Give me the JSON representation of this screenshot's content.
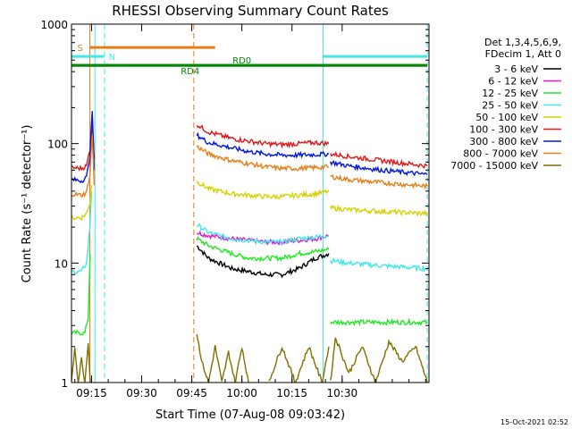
{
  "chart_data": {
    "type": "line",
    "title": "RHESSI Observing Summary Count Rates",
    "xlabel": "Start Time (07-Aug-08 09:03:42)",
    "ylabel": "Count Rate (s⁻¹ detector⁻¹)",
    "ylim": [
      1,
      1000
    ],
    "yscale": "log",
    "xlim_min": [
      7,
      114
    ],
    "x_ticks": [
      {
        "t": 13,
        "label": "09:15"
      },
      {
        "t": 28,
        "label": "09:30"
      },
      {
        "t": 43,
        "label": "09:45"
      },
      {
        "t": 58,
        "label": "10:00"
      },
      {
        "t": 73,
        "label": "10:15"
      },
      {
        "t": 88,
        "label": "10:30"
      }
    ],
    "y_ticks": [
      {
        "v": 1,
        "label": "1"
      },
      {
        "v": 10,
        "label": "10"
      },
      {
        "v": 100,
        "label": "100"
      },
      {
        "v": 1000,
        "label": "1000"
      }
    ],
    "legend_header": [
      "Det 1,3,4,5,6,9,",
      "FDecim 1, Att 0"
    ],
    "footer_date": "15-Oct-2021 02:52",
    "attenuator_lines": [
      {
        "t": 12.5,
        "style": "solid",
        "color": "#e87d18"
      },
      {
        "t": 43.6,
        "style": "dashed",
        "color": "#e87d18"
      },
      {
        "t": 14.0,
        "style": "solid",
        "color": "#42e8e8"
      },
      {
        "t": 16.9,
        "style": "dashed",
        "color": "#42e8e8"
      },
      {
        "t": 82.3,
        "style": "solid",
        "color": "#42e8e8"
      },
      {
        "t": 113.5,
        "style": "dashed",
        "color": "#42e8e8"
      }
    ],
    "flag_bars": [
      {
        "label": "S",
        "t0": 12.5,
        "t1": 50.0,
        "level": 0.935,
        "color": "#e87d18"
      },
      {
        "label": "N",
        "t0": 7.0,
        "t1": 16.8,
        "level": 0.91,
        "color": "#42e8e8"
      },
      {
        "label": "N",
        "t0": 82.3,
        "t1": 113.5,
        "level": 0.91,
        "color": "#42e8e8"
      },
      {
        "label": "RD0",
        "t0": 7.0,
        "t1": 113.5,
        "level": 0.885,
        "color": "#008800"
      },
      {
        "label": "RD4",
        "t0": 7.0,
        "t1": 113.5,
        "level": 0.885,
        "color": "#008800"
      }
    ],
    "series": [
      {
        "name": "3 - 6 keV",
        "color": "#000000",
        "segments": [
          {
            "t": [
              44.5,
              48,
              55,
              60,
              65,
              70,
              75,
              80,
              84
            ],
            "v": [
              14,
              11,
              9,
              8.5,
              8,
              8,
              9,
              11,
              12
            ]
          }
        ]
      },
      {
        "name": "6 - 12 keV",
        "color": "#e01cd0",
        "segments": [
          {
            "t": [
              44.5,
              48,
              55,
              60,
              65,
              70,
              75,
              80,
              84
            ],
            "v": [
              18,
              17,
              16,
              15.5,
              15,
              15,
              15.5,
              16,
              17
            ]
          }
        ]
      },
      {
        "name": "12 - 25 keV",
        "color": "#20e820",
        "segments": [
          {
            "t": [
              7,
              11,
              12,
              12.6
            ],
            "v": [
              2.6,
              2.6,
              3.5,
              12
            ]
          },
          {
            "t": [
              44.5,
              48,
              55,
              60,
              65,
              70,
              75,
              80,
              84
            ],
            "v": [
              16,
              14,
              12,
              11,
              11,
              11,
              12,
              12.5,
              13
            ]
          },
          {
            "t": [
              84.5,
              90,
              100,
              113.5
            ],
            "v": [
              3.2,
              3.2,
              3.2,
              3.2
            ]
          }
        ]
      },
      {
        "name": "25 - 50 keV",
        "color": "#42e8e8",
        "segments": [
          {
            "t": [
              7,
              10,
              11.5,
              12.5,
              13
            ],
            "v": [
              8.5,
              8.5,
              10,
              20,
              40
            ]
          },
          {
            "t": [
              44.5,
              48,
              55,
              60,
              65,
              70,
              75,
              80,
              84
            ],
            "v": [
              21,
              18,
              16,
              15.5,
              15,
              15,
              16,
              16.5,
              17
            ]
          },
          {
            "t": [
              84.5,
              90,
              100,
              113.5
            ],
            "v": [
              10.5,
              10,
              9.5,
              9
            ]
          }
        ]
      },
      {
        "name": "50 - 100 keV",
        "color": "#d8d000",
        "segments": [
          {
            "t": [
              7,
              10,
              11.5,
              12.5,
              13
            ],
            "v": [
              24,
              24,
              26,
              32,
              45
            ]
          },
          {
            "t": [
              44.5,
              48,
              55,
              60,
              65,
              70,
              75,
              80,
              84
            ],
            "v": [
              48,
              42,
              38,
              37,
              36,
              36,
              37,
              38,
              40
            ]
          },
          {
            "t": [
              84.5,
              90,
              100,
              113.5
            ],
            "v": [
              29,
              28,
              27,
              26
            ]
          }
        ]
      },
      {
        "name": "100 - 300 keV",
        "color": "#e01818",
        "segments": [
          {
            "t": [
              7,
              10,
              11.5,
              12.5,
              13.2,
              13.8
            ],
            "v": [
              63,
              62,
              65,
              90,
              150,
              75
            ]
          },
          {
            "t": [
              44.5,
              48,
              55,
              60,
              65,
              70,
              75,
              80,
              84
            ],
            "v": [
              145,
              125,
              110,
              105,
              100,
              98,
              100,
              102,
              100
            ]
          },
          {
            "t": [
              84.5,
              90,
              100,
              113.5
            ],
            "v": [
              82,
              78,
              72,
              65
            ]
          }
        ]
      },
      {
        "name": "300 - 800 keV",
        "color": "#0018e0",
        "segments": [
          {
            "t": [
              7,
              10,
              11.5,
              12.5,
              13.2,
              13.8
            ],
            "v": [
              50,
              49,
              52,
              80,
              190,
              60
            ]
          },
          {
            "t": [
              44.5,
              48,
              55,
              60,
              65,
              70,
              75,
              80,
              84
            ],
            "v": [
              118,
              102,
              92,
              86,
              82,
              80,
              80,
              81,
              82
            ]
          },
          {
            "t": [
              84.5,
              90,
              100,
              113.5
            ],
            "v": [
              70,
              65,
              60,
              55
            ]
          }
        ]
      },
      {
        "name": "800 - 7000 keV",
        "color": "#e87d18",
        "segments": [
          {
            "t": [
              7,
              10,
              11.5,
              12.5,
              13.2,
              13.8
            ],
            "v": [
              38,
              37,
              39,
              55,
              120,
              45
            ]
          },
          {
            "t": [
              44.5,
              48,
              55,
              60,
              65,
              70,
              75,
              80,
              84
            ],
            "v": [
              95,
              82,
              72,
              68,
              64,
              62,
              62,
              63,
              64
            ]
          },
          {
            "t": [
              84.5,
              90,
              100,
              113.5
            ],
            "v": [
              53,
              50,
              47,
              44
            ]
          }
        ]
      },
      {
        "name": "7000 - 15000 keV",
        "color": "#807000",
        "segments": [
          {
            "t": [
              7,
              8,
              9,
              10,
              11,
              12,
              12.6
            ],
            "v": [
              1,
              2,
              1,
              1.6,
              1,
              2.2,
              1
            ]
          },
          {
            "t": [
              44.5,
              46,
              48,
              50,
              52,
              54,
              56,
              58,
              60
            ],
            "v": [
              2.6,
              1.5,
              1,
              2,
              1,
              1.8,
              1,
              2,
              1
            ]
          },
          {
            "t": [
              66,
              70,
              74,
              78,
              82,
              84
            ],
            "v": [
              1,
              2,
              1,
              2,
              1,
              2
            ]
          },
          {
            "t": [
              84.5,
              86,
              90,
              94,
              98,
              102,
              106,
              110,
              113.5
            ],
            "v": [
              1,
              2.4,
              1.2,
              2,
              1,
              2.2,
              1.5,
              2,
              1
            ]
          }
        ]
      }
    ]
  }
}
